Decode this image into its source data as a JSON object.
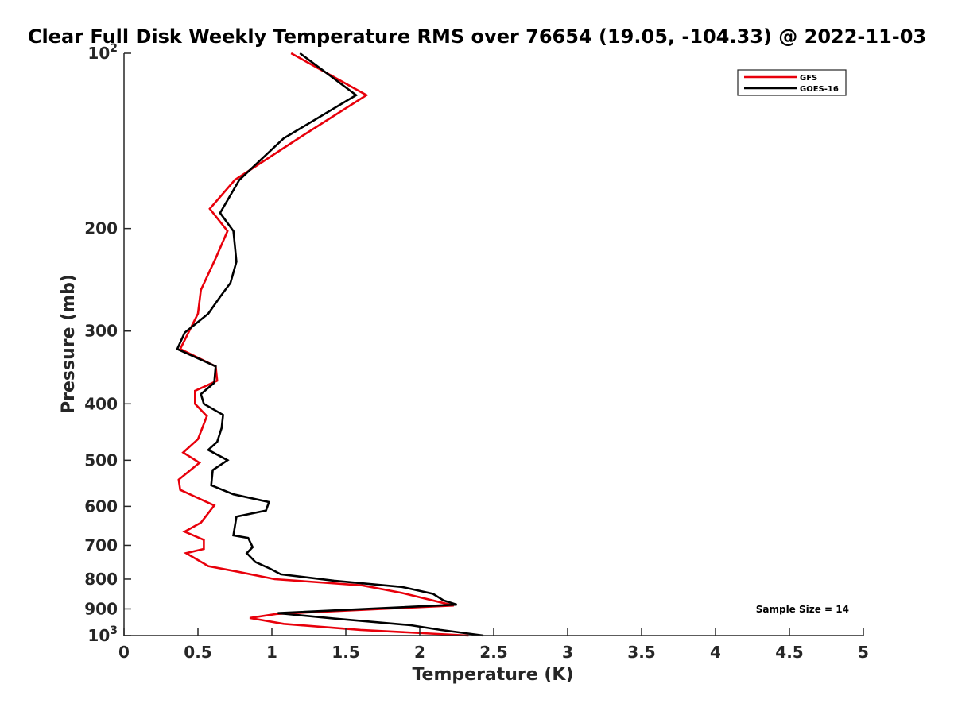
{
  "chart_data": {
    "type": "line",
    "title": "Clear Full Disk Weekly Temperature RMS over 76654 (19.05, -104.33) @ 2022-11-03",
    "xlabel": "Temperature (K)",
    "ylabel": "Pressure (mb)",
    "xlim": [
      0,
      5
    ],
    "ylim": [
      100,
      1000
    ],
    "y_scale": "log",
    "y_reversed": true,
    "grid": false,
    "legend_position": "top-right",
    "x_ticks": [
      "0",
      "0.5",
      "1",
      "1.5",
      "2",
      "2.5",
      "3",
      "3.5",
      "4",
      "4.5",
      "5"
    ],
    "y_ticks": [
      {
        "value": 100,
        "base": "10",
        "exp": "2"
      },
      {
        "value": 200,
        "label": "200"
      },
      {
        "value": 300,
        "label": "300"
      },
      {
        "value": 400,
        "label": "400"
      },
      {
        "value": 500,
        "label": "500"
      },
      {
        "value": 600,
        "label": "600"
      },
      {
        "value": 700,
        "label": "700"
      },
      {
        "value": 800,
        "label": "800"
      },
      {
        "value": 900,
        "label": "900"
      },
      {
        "value": 1000,
        "base": "10",
        "exp": "3"
      }
    ],
    "annotation": "Sample Size = 14",
    "series": [
      {
        "name": "GFS",
        "color": "#e8000b",
        "points": [
          [
            1.13,
            100
          ],
          [
            1.64,
            118
          ],
          [
            1.18,
            140
          ],
          [
            0.75,
            165
          ],
          [
            0.58,
            185
          ],
          [
            0.7,
            202
          ],
          [
            0.62,
            225
          ],
          [
            0.52,
            255
          ],
          [
            0.5,
            280
          ],
          [
            0.38,
            322
          ],
          [
            0.62,
            345
          ],
          [
            0.63,
            365
          ],
          [
            0.48,
            380
          ],
          [
            0.48,
            400
          ],
          [
            0.56,
            420
          ],
          [
            0.5,
            460
          ],
          [
            0.4,
            485
          ],
          [
            0.51,
            505
          ],
          [
            0.37,
            540
          ],
          [
            0.38,
            562
          ],
          [
            0.61,
            598
          ],
          [
            0.52,
            640
          ],
          [
            0.41,
            663
          ],
          [
            0.54,
            685
          ],
          [
            0.54,
            710
          ],
          [
            0.42,
            722
          ],
          [
            0.57,
            760
          ],
          [
            0.77,
            777
          ],
          [
            1.02,
            800
          ],
          [
            1.61,
            820
          ],
          [
            1.88,
            845
          ],
          [
            2.11,
            873
          ],
          [
            2.23,
            888
          ],
          [
            1.03,
            918
          ],
          [
            0.85,
            933
          ],
          [
            1.08,
            955
          ],
          [
            1.6,
            978
          ],
          [
            2.33,
            1000
          ]
        ]
      },
      {
        "name": "GOES-16",
        "color": "#000000",
        "points": [
          [
            1.19,
            100
          ],
          [
            1.57,
            118
          ],
          [
            1.08,
            140
          ],
          [
            0.78,
            165
          ],
          [
            0.65,
            188
          ],
          [
            0.74,
            202
          ],
          [
            0.76,
            228
          ],
          [
            0.72,
            248
          ],
          [
            0.65,
            262
          ],
          [
            0.57,
            280
          ],
          [
            0.41,
            302
          ],
          [
            0.36,
            322
          ],
          [
            0.62,
            345
          ],
          [
            0.61,
            368
          ],
          [
            0.52,
            385
          ],
          [
            0.54,
            400
          ],
          [
            0.67,
            418
          ],
          [
            0.66,
            440
          ],
          [
            0.63,
            465
          ],
          [
            0.57,
            480
          ],
          [
            0.7,
            500
          ],
          [
            0.6,
            520
          ],
          [
            0.59,
            552
          ],
          [
            0.74,
            572
          ],
          [
            0.98,
            590
          ],
          [
            0.96,
            610
          ],
          [
            0.76,
            625
          ],
          [
            0.74,
            673
          ],
          [
            0.84,
            680
          ],
          [
            0.87,
            705
          ],
          [
            0.83,
            722
          ],
          [
            0.89,
            748
          ],
          [
            0.99,
            768
          ],
          [
            1.06,
            785
          ],
          [
            1.42,
            805
          ],
          [
            1.88,
            825
          ],
          [
            2.09,
            848
          ],
          [
            2.16,
            870
          ],
          [
            2.25,
            885
          ],
          [
            1.04,
            915
          ],
          [
            1.42,
            935
          ],
          [
            1.94,
            960
          ],
          [
            2.14,
            978
          ],
          [
            2.43,
            1000
          ]
        ]
      }
    ]
  }
}
